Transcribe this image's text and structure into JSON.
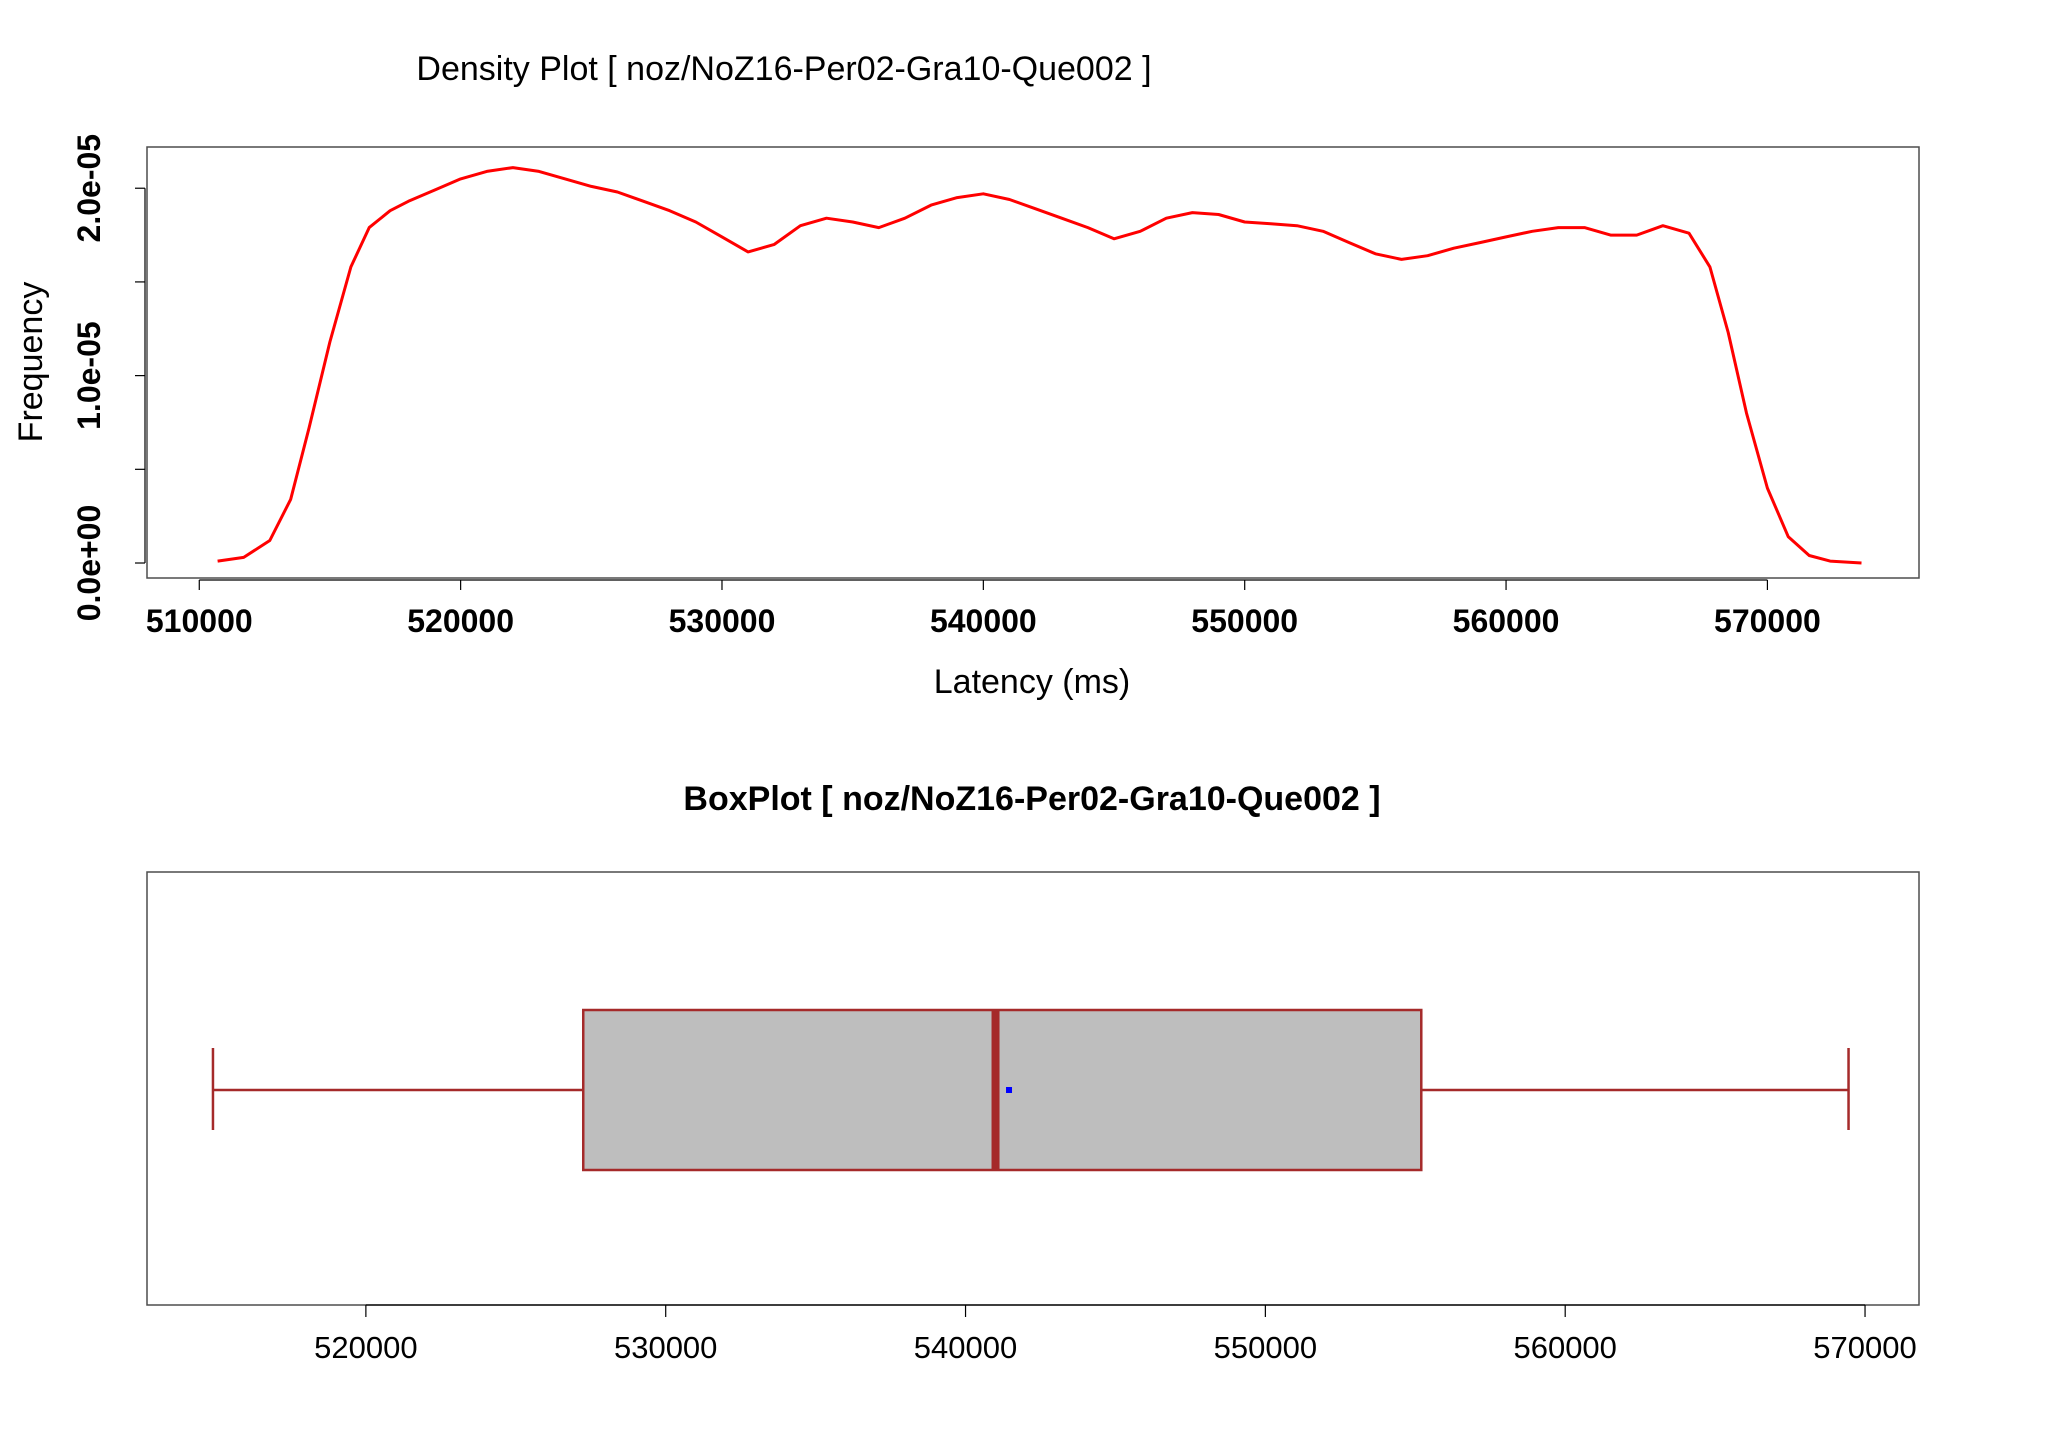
{
  "colors": {
    "density_line": "#ff0000",
    "box_border": "#a52a2a",
    "box_fill": "#bebebe",
    "mean_point": "#0000ff",
    "frame": "#4d4d4d"
  },
  "chart_data": [
    {
      "type": "line",
      "title": "Density Plot [ noz/NoZ16-Per02-Gra10-Que002 ]",
      "xlabel": "Latency (ms)",
      "ylabel": "Frequency",
      "xlim": [
        508000,
        575800
      ],
      "ylim": [
        -8e-07,
        2.22e-05
      ],
      "x_ticks": [
        510000,
        520000,
        530000,
        540000,
        550000,
        560000,
        570000
      ],
      "x_tick_labels": [
        "510000",
        "520000",
        "530000",
        "540000",
        "550000",
        "560000",
        "570000"
      ],
      "y_ticks": [
        0,
        5e-06,
        1e-05,
        1.5e-05,
        2e-05
      ],
      "y_tick_labels": [
        "0.0e+00",
        "",
        "1.0e-05",
        "",
        "2.0e-05"
      ],
      "grid": false,
      "series": [
        {
          "color": "#ff0000",
          "x": [
            510700,
            511700,
            512700,
            513500,
            514200,
            515000,
            515800,
            516500,
            517300,
            518000,
            519000,
            520000,
            521000,
            522000,
            523000,
            524000,
            525000,
            526000,
            527000,
            528000,
            529000,
            530000,
            531000,
            532000,
            533000,
            534000,
            535000,
            536000,
            537000,
            538000,
            539000,
            540000,
            541000,
            542000,
            543000,
            544000,
            545000,
            546000,
            547000,
            548000,
            549000,
            550000,
            551000,
            552000,
            553000,
            554000,
            555000,
            556000,
            557000,
            558000,
            559000,
            560000,
            561000,
            562000,
            563000,
            564000,
            565000,
            566000,
            567000,
            567800,
            568500,
            569200,
            570000,
            570800,
            571600,
            572400,
            573600
          ],
          "y": [
            1e-07,
            3e-07,
            1.2e-06,
            3.4e-06,
            7.2e-06,
            1.18e-05,
            1.58e-05,
            1.79e-05,
            1.88e-05,
            1.93e-05,
            1.99e-05,
            2.05e-05,
            2.09e-05,
            2.11e-05,
            2.09e-05,
            2.05e-05,
            2.01e-05,
            1.98e-05,
            1.93e-05,
            1.88e-05,
            1.82e-05,
            1.74e-05,
            1.66e-05,
            1.7e-05,
            1.8e-05,
            1.84e-05,
            1.82e-05,
            1.79e-05,
            1.84e-05,
            1.91e-05,
            1.95e-05,
            1.97e-05,
            1.94e-05,
            1.89e-05,
            1.84e-05,
            1.79e-05,
            1.73e-05,
            1.77e-05,
            1.84e-05,
            1.87e-05,
            1.86e-05,
            1.82e-05,
            1.81e-05,
            1.8e-05,
            1.77e-05,
            1.71e-05,
            1.65e-05,
            1.62e-05,
            1.64e-05,
            1.68e-05,
            1.71e-05,
            1.74e-05,
            1.77e-05,
            1.79e-05,
            1.79e-05,
            1.75e-05,
            1.75e-05,
            1.8e-05,
            1.76e-05,
            1.58e-05,
            1.23e-05,
            8e-06,
            4e-06,
            1.4e-06,
            4e-07,
            1e-07,
            0.0
          ]
        }
      ]
    },
    {
      "type": "box",
      "title": "BoxPlot [ noz/NoZ16-Per02-Gra10-Que002 ]",
      "xlim": [
        512700,
        571800
      ],
      "x_ticks": [
        520000,
        530000,
        540000,
        550000,
        560000,
        570000
      ],
      "x_tick_labels": [
        "520000",
        "530000",
        "540000",
        "550000",
        "560000",
        "570000"
      ],
      "min": 514900,
      "q1": 527250,
      "median": 541000,
      "q3": 555200,
      "max": 569450,
      "mean": 541450
    }
  ]
}
